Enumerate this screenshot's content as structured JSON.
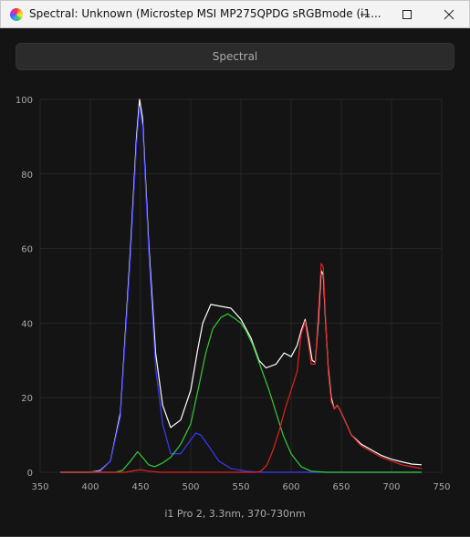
{
  "window": {
    "title": "Spectral: Unknown (Microstep MSI MP275QPDG sRGBmode (i1..."
  },
  "tab_button": {
    "label": "Spectral"
  },
  "footer": {
    "label": "i1 Pro 2, 3.3nm, 370-730nm"
  },
  "icons": {
    "app": "rainbow-app-icon",
    "minimize": "minimize-icon",
    "maximize": "maximize-icon",
    "close": "close-icon"
  },
  "chart_data": {
    "type": "line",
    "xlim": [
      350,
      750
    ],
    "ylim": [
      0,
      100
    ],
    "x_ticks": [
      350,
      400,
      450,
      500,
      550,
      600,
      650,
      700,
      750
    ],
    "y_ticks": [
      0,
      20,
      40,
      60,
      80,
      100
    ],
    "grid": true,
    "series": [
      {
        "color": "#ffffff",
        "points": [
          [
            370,
            0
          ],
          [
            400,
            0
          ],
          [
            410,
            0.5
          ],
          [
            420,
            3
          ],
          [
            430,
            16
          ],
          [
            440,
            60
          ],
          [
            446,
            90
          ],
          [
            449,
            100
          ],
          [
            452,
            95
          ],
          [
            458,
            62
          ],
          [
            465,
            32
          ],
          [
            472,
            18
          ],
          [
            480,
            12
          ],
          [
            490,
            14
          ],
          [
            500,
            22
          ],
          [
            507,
            33
          ],
          [
            512,
            40
          ],
          [
            520,
            45
          ],
          [
            530,
            44.5
          ],
          [
            540,
            44
          ],
          [
            550,
            41
          ],
          [
            560,
            36
          ],
          [
            568,
            30
          ],
          [
            575,
            28
          ],
          [
            585,
            29
          ],
          [
            593,
            32
          ],
          [
            600,
            31
          ],
          [
            606,
            34
          ],
          [
            610,
            38
          ],
          [
            614,
            41
          ],
          [
            618,
            35
          ],
          [
            621,
            30
          ],
          [
            624,
            29.5
          ],
          [
            627,
            40
          ],
          [
            630,
            54
          ],
          [
            632,
            53
          ],
          [
            634,
            42
          ],
          [
            637,
            28
          ],
          [
            640,
            20
          ],
          [
            643,
            17
          ],
          [
            646,
            18
          ],
          [
            650,
            16
          ],
          [
            655,
            13
          ],
          [
            660,
            10
          ],
          [
            670,
            7.5
          ],
          [
            680,
            6
          ],
          [
            690,
            4.5
          ],
          [
            700,
            3.5
          ],
          [
            710,
            2.8
          ],
          [
            720,
            2.2
          ],
          [
            730,
            2
          ]
        ]
      },
      {
        "color": "#3a3aff",
        "points": [
          [
            370,
            0
          ],
          [
            400,
            0
          ],
          [
            410,
            0.3
          ],
          [
            420,
            3
          ],
          [
            430,
            15
          ],
          [
            440,
            58
          ],
          [
            446,
            88
          ],
          [
            449,
            98
          ],
          [
            452,
            93
          ],
          [
            458,
            60
          ],
          [
            465,
            28
          ],
          [
            472,
            13
          ],
          [
            480,
            5
          ],
          [
            490,
            5
          ],
          [
            498,
            8
          ],
          [
            505,
            10.5
          ],
          [
            510,
            10
          ],
          [
            518,
            7
          ],
          [
            528,
            3
          ],
          [
            540,
            1
          ],
          [
            555,
            0.3
          ],
          [
            570,
            0
          ],
          [
            730,
            0
          ]
        ]
      },
      {
        "color": "#33cc33",
        "points": [
          [
            370,
            0
          ],
          [
            425,
            0
          ],
          [
            432,
            0.5
          ],
          [
            440,
            3
          ],
          [
            447,
            5.5
          ],
          [
            452,
            4
          ],
          [
            458,
            2
          ],
          [
            464,
            1.5
          ],
          [
            472,
            2.5
          ],
          [
            480,
            4
          ],
          [
            490,
            7.5
          ],
          [
            500,
            13
          ],
          [
            508,
            23
          ],
          [
            515,
            32
          ],
          [
            522,
            38.5
          ],
          [
            530,
            41.5
          ],
          [
            537,
            42.5
          ],
          [
            545,
            41
          ],
          [
            550,
            40
          ],
          [
            555,
            38
          ],
          [
            562,
            34
          ],
          [
            570,
            28
          ],
          [
            578,
            22
          ],
          [
            585,
            16
          ],
          [
            592,
            10
          ],
          [
            600,
            5
          ],
          [
            610,
            1.5
          ],
          [
            620,
            0.3
          ],
          [
            635,
            0
          ],
          [
            730,
            0
          ]
        ]
      },
      {
        "color": "#e32222",
        "points": [
          [
            370,
            0
          ],
          [
            435,
            0
          ],
          [
            443,
            0.4
          ],
          [
            450,
            0.7
          ],
          [
            458,
            0.3
          ],
          [
            470,
            0
          ],
          [
            565,
            0
          ],
          [
            570,
            0.3
          ],
          [
            576,
            2
          ],
          [
            582,
            6
          ],
          [
            588,
            11
          ],
          [
            594,
            17
          ],
          [
            600,
            22
          ],
          [
            606,
            27
          ],
          [
            610,
            37
          ],
          [
            614,
            40.5
          ],
          [
            617,
            35
          ],
          [
            620,
            29
          ],
          [
            624,
            29
          ],
          [
            627,
            42
          ],
          [
            630,
            56
          ],
          [
            632,
            55
          ],
          [
            634,
            43
          ],
          [
            637,
            27
          ],
          [
            640,
            19
          ],
          [
            643,
            17
          ],
          [
            646,
            18
          ],
          [
            650,
            16
          ],
          [
            655,
            13
          ],
          [
            660,
            10
          ],
          [
            670,
            7
          ],
          [
            680,
            5.5
          ],
          [
            690,
            4
          ],
          [
            700,
            3
          ],
          [
            710,
            2
          ],
          [
            720,
            1.5
          ],
          [
            730,
            1
          ]
        ]
      }
    ]
  }
}
